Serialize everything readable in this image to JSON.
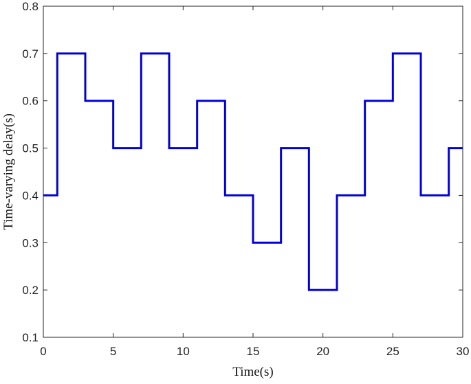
{
  "chart_data": {
    "type": "line",
    "step": true,
    "title": "",
    "xlabel": "Time(s)",
    "ylabel": "Time-varying delay(s)",
    "xlim": [
      0,
      30
    ],
    "ylim": [
      0.1,
      0.8
    ],
    "xticks": [
      0,
      5,
      10,
      15,
      20,
      25,
      30
    ],
    "xtick_labels": [
      "0",
      "5",
      "10",
      "15",
      "20",
      "25",
      "30"
    ],
    "yticks": [
      0.1,
      0.2,
      0.3,
      0.4,
      0.5,
      0.6,
      0.7,
      0.8
    ],
    "ytick_labels": [
      "0.1",
      "0.2",
      "0.3",
      "0.4",
      "0.5",
      "0.6",
      "0.7",
      "0.8"
    ],
    "grid": false,
    "legend": "none",
    "series": [
      {
        "color": "#0000dd",
        "x": [
          0,
          1,
          3,
          5,
          7,
          9,
          11,
          13,
          15,
          17,
          19,
          21,
          23,
          25,
          27,
          29,
          30
        ],
        "y": [
          0.4,
          0.7,
          0.6,
          0.5,
          0.7,
          0.5,
          0.6,
          0.4,
          0.3,
          0.5,
          0.2,
          0.4,
          0.6,
          0.7,
          0.4,
          0.5,
          0.5
        ]
      }
    ]
  }
}
